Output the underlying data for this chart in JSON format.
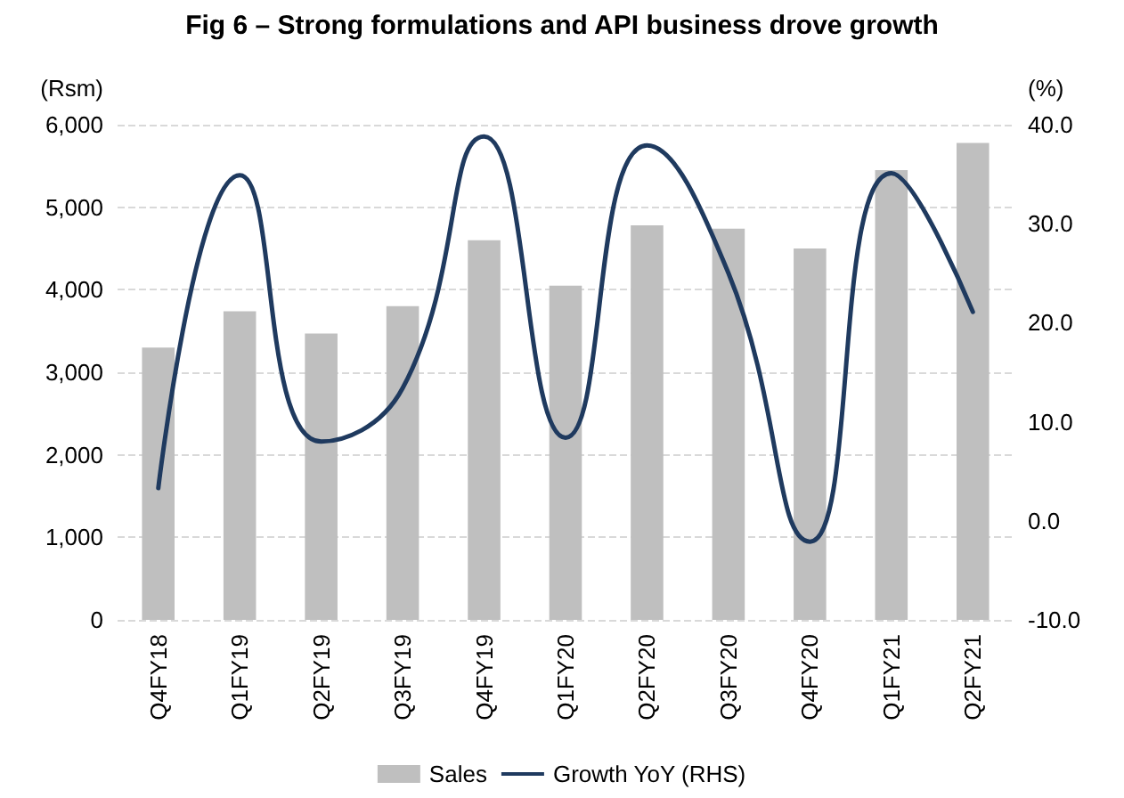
{
  "chart_data": {
    "type": "bar",
    "title": "Fig 6 – Strong formulations and API business drove growth",
    "ylabel": "(Rsm)",
    "y2label": "(%)",
    "categories": [
      "Q4FY18",
      "Q1FY19",
      "Q2FY19",
      "Q3FY19",
      "Q4FY19",
      "Q1FY20",
      "Q2FY20",
      "Q3FY20",
      "Q4FY20",
      "Q1FY21",
      "Q2FY21"
    ],
    "series": [
      {
        "name": "Sales",
        "color": "#bfbfbf",
        "values": [
          3300,
          3740,
          3470,
          3800,
          4600,
          4050,
          4780,
          4740,
          4500,
          5450,
          5780
        ]
      },
      {
        "name": "Growth YoY (RHS)",
        "type": "line",
        "axis": "y2",
        "color": "#1f3a5f",
        "values": [
          3.3,
          34.9,
          8.0,
          13.4,
          38.8,
          8.4,
          37.9,
          25.0,
          -2.1,
          35.1,
          21.1
        ]
      }
    ],
    "ylim": [
      0,
      6000
    ],
    "yticks": [
      0,
      {
        "value": 1000,
        "label": "1,000"
      },
      {
        "value": 2000,
        "label": "2,000"
      },
      {
        "value": 3000,
        "label": "3,000"
      },
      {
        "value": 4000,
        "label": "4,000"
      },
      {
        "value": 5000,
        "label": "5,000"
      },
      {
        "value": 6000,
        "label": "6,000"
      }
    ],
    "y2lim": [
      -10,
      40
    ],
    "y2ticks": [
      {
        "value": -10,
        "label": "-10.0"
      },
      {
        "value": 0,
        "label": "0.0"
      },
      {
        "value": 10,
        "label": "10.0"
      },
      {
        "value": 20,
        "label": "20.0"
      },
      {
        "value": 30,
        "label": "30.0"
      },
      {
        "value": 40,
        "label": "40.0"
      }
    ],
    "grid": "y",
    "legend": "bottom",
    "marker": "none",
    "line_style": "solid"
  }
}
